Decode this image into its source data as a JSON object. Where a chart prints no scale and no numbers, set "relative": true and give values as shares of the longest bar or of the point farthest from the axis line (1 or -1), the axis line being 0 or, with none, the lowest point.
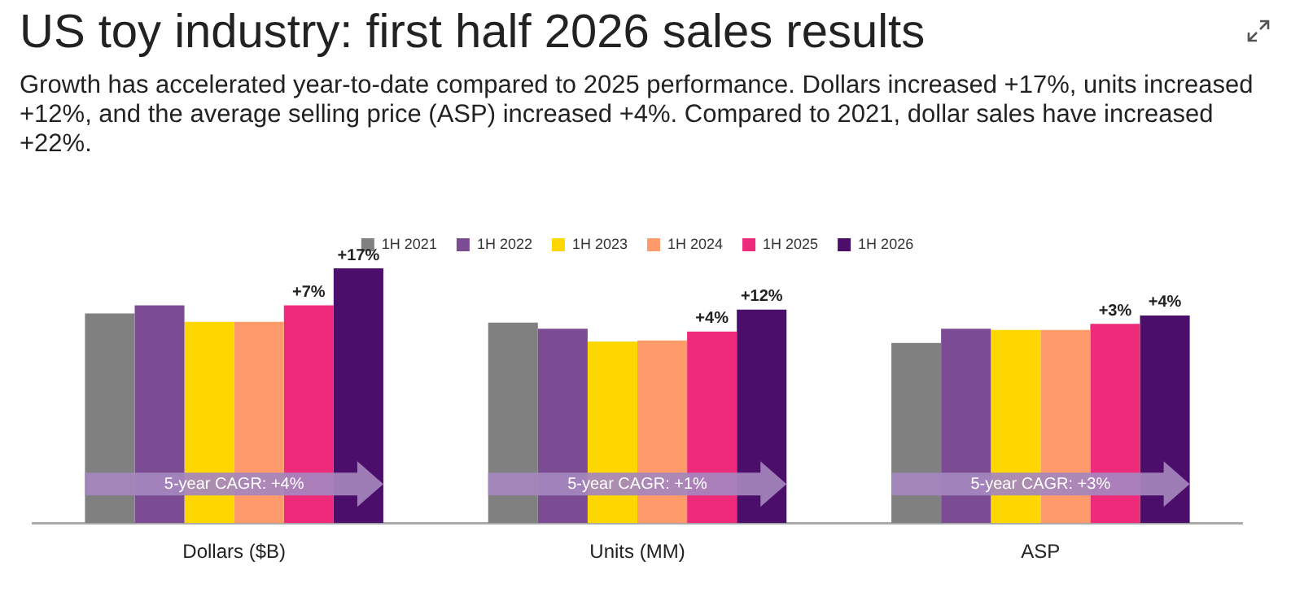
{
  "chart_data": {
    "type": "bar",
    "title": "US toy industry: first half 2026 sales results",
    "subtitle": "Growth has accelerated year-to-date compared to 2025 performance. Dollars increased +17%, units increased +12%, and the average selling price (ASP) increased +4%. Compared to 2021, dollar sales have increased +22%.",
    "categories": [
      "Dollars ($B)",
      "Units (MM)",
      "ASP"
    ],
    "relative": true,
    "legend": "top",
    "series": [
      {
        "name": "1H 2021",
        "color": "#808080",
        "values": [
          0.823,
          0.787,
          0.707
        ]
      },
      {
        "name": "1H 2022",
        "color": "#7b4b94",
        "values": [
          0.855,
          0.763,
          0.763
        ]
      },
      {
        "name": "1H 2023",
        "color": "#ffd700",
        "values": [
          0.79,
          0.713,
          0.758
        ]
      },
      {
        "name": "1H 2024",
        "color": "#ff9a6a",
        "values": [
          0.79,
          0.717,
          0.758
        ]
      },
      {
        "name": "1H 2025",
        "color": "#ee2a7b",
        "values": [
          0.855,
          0.752,
          0.782
        ]
      },
      {
        "name": "1H 2026",
        "color": "#4b0f6b",
        "values": [
          1,
          0.838,
          0.815
        ]
      }
    ],
    "annotations": [
      "+7%",
      "+17%",
      "+4%",
      "+12%",
      "+3%",
      "+4%",
      {
        "text": "5-year CAGR: +4%",
        "x": "Dollars ($B)"
      },
      {
        "text": "5-year CAGR: +1%",
        "x": "Units (MM)"
      },
      {
        "text": "5-year CAGR: +3%",
        "x": "ASP"
      }
    ]
  }
}
